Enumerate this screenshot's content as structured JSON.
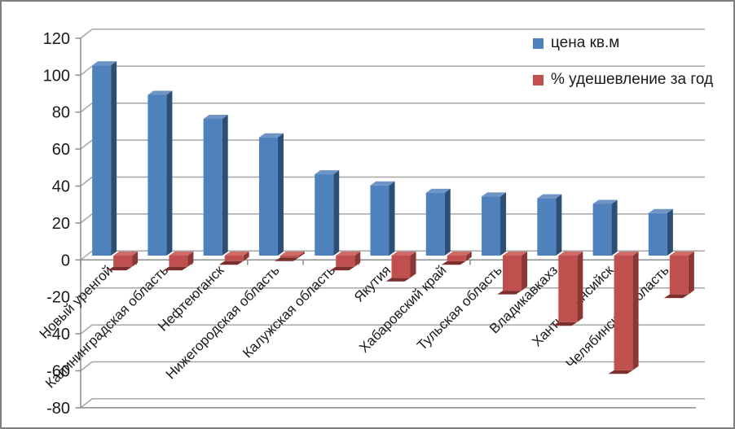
{
  "chart_data": {
    "type": "bar",
    "variant": "3d-clustered-column",
    "title": "",
    "categories": [
      "Новый уренгой",
      "Калининградская область",
      "Нефтеюганск",
      "Нижегородская область",
      "Калужская область",
      "Якутия",
      "Хабаровский край",
      "Тульская область",
      "Владикавкахз",
      "Ханты-Мансийск",
      "Челябинская область"
    ],
    "series": [
      {
        "name": "цена кв.м",
        "color": "#4F81BD",
        "values": [
          103,
          87,
          74,
          64,
          44,
          38,
          34,
          32,
          31,
          28,
          23
        ]
      },
      {
        "name": "% удешевление за год",
        "color": "#C0504D",
        "values": [
          -6,
          -6,
          -3,
          -1,
          -6,
          -12,
          -3,
          -19,
          -36,
          -62,
          -21
        ]
      }
    ],
    "ylim": [
      -80,
      120
    ],
    "yticks": [
      120,
      100,
      80,
      60,
      40,
      20,
      0,
      -20,
      -40,
      -60,
      -80
    ],
    "grid": true,
    "legend_position": "top-right"
  },
  "colors": {
    "background": "#FFFFFF",
    "border": "#7F7F7F",
    "grid": "#A6A6A6",
    "axis": "#8C8C8C",
    "text": "#1A1A1A",
    "blue_front": "#4F81BD",
    "blue_side": "#2D4E75",
    "blue_top": "#6D94C5",
    "red_front": "#C0504D",
    "red_side": "#8A3735",
    "red_top": "#CE6B68",
    "red_bottom": "#7B2F2D"
  }
}
